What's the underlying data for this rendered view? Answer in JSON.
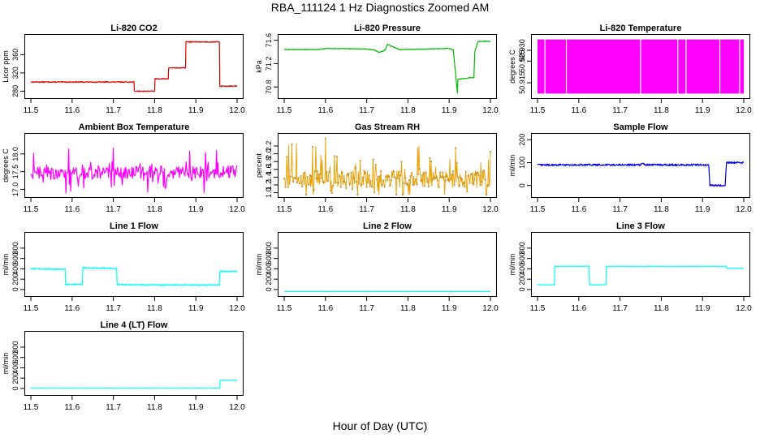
{
  "page": {
    "title": "RBA_111124  1 Hz Diagnostics Zoomed AM",
    "xcaption": "Hour of Day (UTC)"
  },
  "chart_data": [
    {
      "id": "co2",
      "type": "line",
      "title": "Li-820 CO2",
      "ylabel": "Licor ppm",
      "color": "#dd0000",
      "xlim": [
        11.5,
        12.0
      ],
      "ylim": [
        270,
        398
      ],
      "xticks": [
        "11.5",
        "11.6",
        "11.7",
        "11.8",
        "11.9",
        "12.0"
      ],
      "yticks": [
        "280",
        "320",
        "360"
      ],
      "noise": 1,
      "series": [
        {
          "x": [
            11.5,
            11.75,
            11.75,
            11.8,
            11.8,
            11.833,
            11.833,
            11.875,
            11.875,
            11.957,
            11.957,
            12.0
          ],
          "y": [
            300,
            300,
            280,
            280,
            307,
            307,
            331,
            331,
            388,
            388,
            291,
            291
          ]
        }
      ]
    },
    {
      "id": "pressure",
      "type": "line",
      "title": "Li-820 Pressure",
      "ylabel": "kPa",
      "color": "#00bb00",
      "xlim": [
        11.5,
        12.0
      ],
      "ylim": [
        70.65,
        71.65
      ],
      "xticks": [
        "11.5",
        "11.6",
        "11.7",
        "11.8",
        "11.9",
        "12.0"
      ],
      "yticks": [
        "70.8",
        "71.2",
        "71.6"
      ],
      "noise": 0.005,
      "series": [
        {
          "x": [
            11.5,
            11.58,
            11.6,
            11.7,
            11.72,
            11.73,
            11.745,
            11.75,
            11.78,
            11.85,
            11.9,
            11.91,
            11.92,
            11.92,
            11.945,
            11.948,
            11.96,
            11.962,
            11.97,
            12.0
          ],
          "y": [
            71.44,
            71.44,
            71.46,
            71.45,
            71.43,
            71.39,
            71.43,
            71.53,
            71.44,
            71.45,
            71.46,
            71.43,
            70.7,
            70.93,
            70.95,
            70.96,
            70.96,
            71.4,
            71.58,
            71.58
          ]
        }
      ]
    },
    {
      "id": "li820-temp",
      "type": "area",
      "title": "Li-820 Temperature",
      "ylabel": "degrees C",
      "color": "#ff00ff",
      "xlim": [
        11.5,
        12.0
      ],
      "ylim": [
        50.909,
        50.936
      ],
      "xticks": [
        "11.5",
        "11.6",
        "11.7",
        "11.8",
        "11.9",
        "12.0"
      ],
      "yticks": [
        "50.915",
        "50.925",
        "50.930"
      ],
      "band": [
        50.91,
        50.935
      ],
      "gaps": [
        11.518,
        11.57,
        11.75,
        11.84,
        11.86,
        11.942,
        11.99
      ]
    },
    {
      "id": "box-temp",
      "type": "line",
      "title": "Ambient Box Temperature",
      "ylabel": "degrees C",
      "color": "#ff00ff",
      "xlim": [
        11.5,
        12.0
      ],
      "ylim": [
        16.85,
        18.5
      ],
      "xticks": [
        "11.5",
        "11.6",
        "11.7",
        "11.8",
        "11.9",
        "12.0"
      ],
      "yticks": [
        "17.0",
        "17.5",
        "18.0"
      ],
      "points": 300,
      "noise": 0.18,
      "spike": 0.55,
      "series": [
        {
          "x": [
            11.5,
            12.0
          ],
          "y": [
            17.45,
            17.5
          ]
        }
      ]
    },
    {
      "id": "gas-rh",
      "type": "line",
      "title": "Gas Stream RH",
      "ylabel": "percent",
      "color": "#e8a000",
      "dots": true,
      "xlim": [
        11.5,
        12.0
      ],
      "ylim": [
        0.95,
        2.45
      ],
      "xticks": [
        "11.5",
        "11.6",
        "11.7",
        "11.8",
        "11.9",
        "12.0"
      ],
      "yticks": [
        "1.0",
        "1.2",
        "1.4",
        "1.6",
        "1.8",
        "2.0",
        "2.2"
      ],
      "points": 320,
      "noise": 0.22,
      "spike": 0.7,
      "series": [
        {
          "x": [
            11.5,
            12.0
          ],
          "y": [
            1.35,
            1.35
          ]
        }
      ]
    },
    {
      "id": "sample-flow",
      "type": "line",
      "title": "Sample Flow",
      "ylabel": "ml/min",
      "color": "#0000ee",
      "xlim": [
        11.5,
        12.0
      ],
      "ylim": [
        -40,
        215
      ],
      "xticks": [
        "11.5",
        "11.6",
        "11.7",
        "11.8",
        "11.9",
        "12.0"
      ],
      "yticks": [
        "0",
        "100",
        "200"
      ],
      "noise": 4,
      "series": [
        {
          "x": [
            11.5,
            11.75,
            11.752,
            11.76,
            11.915,
            11.918,
            11.955,
            11.958,
            12.0
          ],
          "y": [
            90,
            90,
            100,
            90,
            90,
            0,
            0,
            100,
            100
          ]
        }
      ]
    },
    {
      "id": "line1-flow",
      "type": "line",
      "title": "Line 1 Flow",
      "ylabel": "ml/min",
      "color": "#00ffff",
      "xlim": [
        11.5,
        12.0
      ],
      "ylim": [
        -80,
        1050
      ],
      "xticks": [
        "11.5",
        "11.6",
        "11.7",
        "11.8",
        "11.9",
        "12.0"
      ],
      "yticks": [
        "0",
        "200",
        "400",
        "600",
        "800"
      ],
      "noise": 12,
      "series": [
        {
          "x": [
            11.5,
            11.583,
            11.583,
            11.625,
            11.625,
            11.708,
            11.708,
            11.74,
            11.957,
            11.957,
            12.0
          ],
          "y": [
            400,
            390,
            100,
            100,
            420,
            410,
            100,
            90,
            85,
            350,
            350
          ]
        }
      ]
    },
    {
      "id": "line2-flow",
      "type": "line",
      "title": "Line 2 Flow",
      "ylabel": "ml/min",
      "color": "#00ffff",
      "xlim": [
        11.5,
        12.0
      ],
      "ylim": [
        -80,
        1050
      ],
      "xticks": [
        "11.5",
        "11.6",
        "11.7",
        "11.8",
        "11.9",
        "12.0"
      ],
      "yticks": [
        "0",
        "200",
        "400",
        "600",
        "800"
      ],
      "noise": 0,
      "series": [
        {
          "x": [
            11.5,
            12.0
          ],
          "y": [
            -40,
            -40
          ]
        }
      ]
    },
    {
      "id": "line3-flow",
      "type": "line",
      "title": "Line 3 Flow",
      "ylabel": "ml/min",
      "color": "#00ffff",
      "xlim": [
        11.5,
        12.0
      ],
      "ylim": [
        -80,
        1050
      ],
      "xticks": [
        "11.5",
        "11.6",
        "11.7",
        "11.8",
        "11.9",
        "12.0"
      ],
      "yticks": [
        "0",
        "200",
        "400",
        "600",
        "800"
      ],
      "noise": 4,
      "series": [
        {
          "x": [
            11.5,
            11.541,
            11.541,
            11.625,
            11.625,
            11.666,
            11.666,
            11.958,
            11.958,
            12.0
          ],
          "y": [
            90,
            90,
            450,
            450,
            90,
            90,
            450,
            450,
            410,
            410
          ]
        }
      ]
    },
    {
      "id": "line4-flow",
      "type": "line",
      "title": "Line 4 (LT) Flow",
      "ylabel": "ml/min",
      "color": "#00ffff",
      "xlim": [
        11.5,
        12.0
      ],
      "ylim": [
        -80,
        1050
      ],
      "xticks": [
        "11.5",
        "11.6",
        "11.7",
        "11.8",
        "11.9",
        "12.0"
      ],
      "yticks": [
        "0",
        "200",
        "400",
        "600",
        "800"
      ],
      "noise": 2,
      "series": [
        {
          "x": [
            11.5,
            11.958,
            11.958,
            12.0
          ],
          "y": [
            10,
            10,
            160,
            160
          ]
        }
      ]
    }
  ]
}
